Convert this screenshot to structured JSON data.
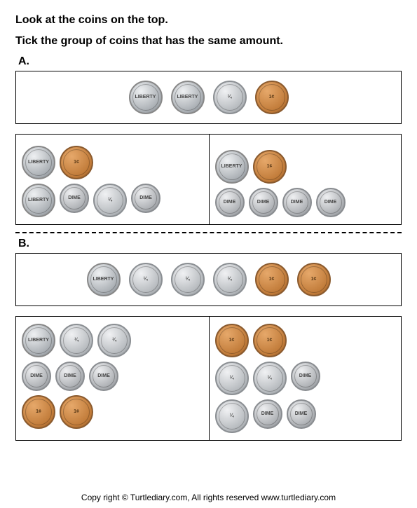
{
  "instructions": {
    "line1": "Look at the coins on the top.",
    "line2": "Tick the group of coins that has the same amount."
  },
  "sections": {
    "A": {
      "label": "A.",
      "top": [
        "nickel",
        "nickel",
        "quarter",
        "penny"
      ],
      "left_rows": [
        [
          "nickel",
          "penny"
        ],
        [
          "nickel",
          "dime",
          "quarter",
          "dime"
        ]
      ],
      "right_rows": [
        [
          "nickel",
          "penny"
        ],
        [
          "dime",
          "dime",
          "dime",
          "dime"
        ]
      ]
    },
    "B": {
      "label": "B.",
      "top": [
        "nickel",
        "quarter",
        "quarter",
        "quarter",
        "penny",
        "penny"
      ],
      "left_rows": [
        [
          "nickel",
          "quarter",
          "quarter"
        ],
        [
          "dime",
          "dime",
          "dime"
        ],
        [
          "penny",
          "penny"
        ]
      ],
      "right_rows": [
        [
          "penny",
          "penny"
        ],
        [
          "quarter",
          "quarter",
          "dime"
        ],
        [
          "quarter",
          "dime",
          "dime"
        ]
      ]
    }
  },
  "coin_text": {
    "nickel": "LIBERTY",
    "quarter": "¼",
    "dime": "DIME",
    "penny": "1¢"
  },
  "footer": "Copy right © Turtlediary.com, All rights reserved   www.turtlediary.com",
  "colors": {
    "silver": "#b4b8bc",
    "copper": "#c07a38",
    "border": "#000000"
  }
}
